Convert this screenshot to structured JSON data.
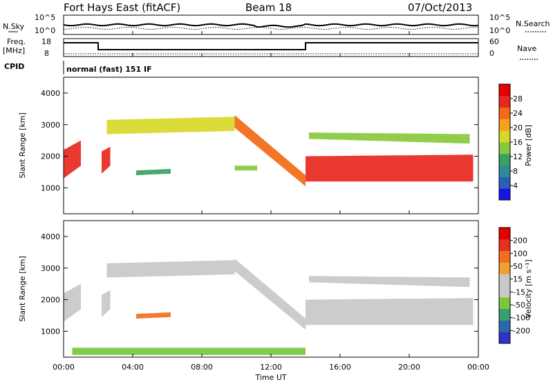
{
  "header": {
    "station": "Fort Hays East (fitACF)",
    "beam": "Beam 18",
    "date": "07/Oct/2013"
  },
  "top_panels": {
    "nsky_label": "N.Sky",
    "nsearch_label": "N.Search",
    "noise_ticks": [
      "10^5",
      "10^0"
    ],
    "freq_label_1": "Freq.",
    "freq_label_2": "[MHz]",
    "freq_ticks": [
      "18",
      "8"
    ],
    "nave_label": "Nave",
    "nave_ticks": [
      "60",
      "0"
    ],
    "cpid_label": "CPID",
    "cpid_text": "normal (fast) 151 IF",
    "freq_steps": [
      {
        "start": "00:00",
        "end": "02:00",
        "level": "high"
      },
      {
        "start": "02:00",
        "end": "14:00",
        "level": "low"
      },
      {
        "start": "14:00",
        "end": "24:00",
        "level": "high"
      }
    ]
  },
  "colors": {
    "frame": "#000000",
    "power_scale": [
      "#1414e6",
      "#2a5fb8",
      "#2f8a9a",
      "#3aa064",
      "#88c83c",
      "#d8d828",
      "#f4a21e",
      "#f26a16",
      "#e8281e",
      "#e60000"
    ],
    "velocity_scale": [
      "#3232c8",
      "#2a6aa8",
      "#38a070",
      "#78c83c",
      "#c8c8c8",
      "#c8c8c8",
      "#f0a030",
      "#f07020",
      "#e83020",
      "#e60000"
    ]
  },
  "chart_data": [
    {
      "type": "heatmap",
      "title": "Power",
      "xlabel": "Time UT",
      "ylabel": "Slant Range [km]",
      "x_ticks": [
        "00:00",
        "04:00",
        "08:00",
        "12:00",
        "16:00",
        "20:00",
        "00:00"
      ],
      "y_ticks": [
        "1000",
        "2000",
        "3000",
        "4000"
      ],
      "xlim_hours": [
        0,
        24
      ],
      "ylim_km": [
        180,
        4500
      ],
      "colorbar": {
        "label": "Power [dB]",
        "ticks": [
          "28",
          "24",
          "20",
          "16",
          "12",
          "8",
          "4"
        ],
        "range": [
          0,
          30
        ]
      },
      "bands": [
        {
          "t_start": 0,
          "t_end": 1.0,
          "r_low": [
            1300,
            1700
          ],
          "r_high": [
            2200,
            2500
          ],
          "level": 26
        },
        {
          "t_start": 2.2,
          "t_end": 2.7,
          "r_low": [
            1450,
            1700
          ],
          "r_high": [
            2150,
            2300
          ],
          "level": 24
        },
        {
          "t_start": 2.5,
          "t_end": 9.9,
          "r_low": [
            2700,
            2800
          ],
          "r_high": [
            3150,
            3250
          ],
          "level": 17
        },
        {
          "t_start": 9.9,
          "t_end": 14.0,
          "r_low": [
            2900,
            1050
          ],
          "r_high": [
            3300,
            1400
          ],
          "level": 21
        },
        {
          "t_start": 14.0,
          "t_end": 23.7,
          "r_low": [
            1200,
            1200
          ],
          "r_high": [
            2000,
            2050
          ],
          "level": 25
        },
        {
          "t_start": 14.2,
          "t_end": 23.5,
          "r_low": [
            2550,
            2400
          ],
          "r_high": [
            2750,
            2700
          ],
          "level": 14
        },
        {
          "t_start": 4.2,
          "t_end": 6.2,
          "r_low": [
            1400,
            1450
          ],
          "r_high": [
            1550,
            1600
          ],
          "level": 9
        },
        {
          "t_start": 9.9,
          "t_end": 11.2,
          "r_low": [
            1550,
            1550
          ],
          "r_high": [
            1700,
            1700
          ],
          "level": 12
        }
      ]
    },
    {
      "type": "heatmap",
      "title": "Velocity",
      "xlabel": "Time UT",
      "ylabel": "Slant Range [km]",
      "x_ticks": [
        "00:00",
        "04:00",
        "08:00",
        "12:00",
        "16:00",
        "20:00",
        "00:00"
      ],
      "y_ticks": [
        "1000",
        "2000",
        "3000",
        "4000"
      ],
      "xlim_hours": [
        0,
        24
      ],
      "ylim_km": [
        180,
        4500
      ],
      "colorbar": {
        "label": "Velocity [m s⁻¹]",
        "ticks": [
          "200",
          "100",
          "50",
          "15",
          "-15",
          "-50",
          "-100",
          "-200"
        ],
        "range": [
          -250,
          250
        ]
      },
      "bands": [
        {
          "t_start": 0,
          "t_end": 1.0,
          "r_low": [
            1300,
            1700
          ],
          "r_high": [
            2200,
            2500
          ],
          "level": 0
        },
        {
          "t_start": 2.2,
          "t_end": 2.7,
          "r_low": [
            1450,
            1700
          ],
          "r_high": [
            2150,
            2300
          ],
          "level": 0
        },
        {
          "t_start": 2.5,
          "t_end": 9.9,
          "r_low": [
            2700,
            2800
          ],
          "r_high": [
            3150,
            3250
          ],
          "level": 5
        },
        {
          "t_start": 9.9,
          "t_end": 14.0,
          "r_low": [
            2900,
            1050
          ],
          "r_high": [
            3300,
            1400
          ],
          "level": 40
        },
        {
          "t_start": 14.0,
          "t_end": 23.7,
          "r_low": [
            1200,
            1200
          ],
          "r_high": [
            2000,
            2050
          ],
          "level": 0
        },
        {
          "t_start": 14.2,
          "t_end": 23.5,
          "r_low": [
            2550,
            2400
          ],
          "r_high": [
            2750,
            2700
          ],
          "level": 0
        },
        {
          "t_start": 4.2,
          "t_end": 6.2,
          "r_low": [
            1400,
            1450
          ],
          "r_high": [
            1550,
            1600
          ],
          "level": 120
        },
        {
          "t_start": 0.5,
          "t_end": 14.0,
          "r_low": [
            250,
            250
          ],
          "r_high": [
            480,
            480
          ],
          "level": -60
        }
      ]
    }
  ]
}
